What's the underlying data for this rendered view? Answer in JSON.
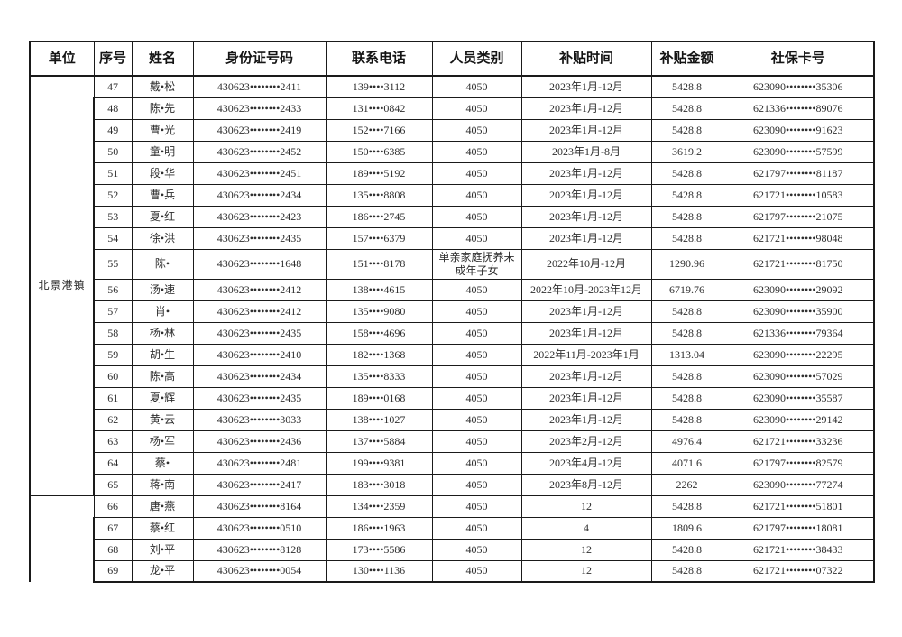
{
  "table": {
    "headers": [
      "单位",
      "序号",
      "姓名",
      "身份证号码",
      "联系电话",
      "人员类别",
      "补贴时间",
      "补贴金额",
      "社保卡号"
    ],
    "border_color": "#1a1a1a",
    "text_color": "#2e2e2e",
    "groups": [
      {
        "unit": "北景港镇",
        "rows": [
          [
            "47",
            "戴•松",
            "430623••••••••2411",
            "139••••3112",
            "4050",
            "2023年1月-12月",
            "5428.8",
            "623090••••••••35306"
          ],
          [
            "48",
            "陈•先",
            "430623••••••••2433",
            "131••••0842",
            "4050",
            "2023年1月-12月",
            "5428.8",
            "621336••••••••89076"
          ],
          [
            "49",
            "曹•光",
            "430623••••••••2419",
            "152••••7166",
            "4050",
            "2023年1月-12月",
            "5428.8",
            "623090••••••••91623"
          ],
          [
            "50",
            "童•明",
            "430623••••••••2452",
            "150••••6385",
            "4050",
            "2023年1月-8月",
            "3619.2",
            "623090••••••••57599"
          ],
          [
            "51",
            "段•华",
            "430623••••••••2451",
            "189••••5192",
            "4050",
            "2023年1月-12月",
            "5428.8",
            "621797••••••••81187"
          ],
          [
            "52",
            "曹•兵",
            "430623••••••••2434",
            "135••••8808",
            "4050",
            "2023年1月-12月",
            "5428.8",
            "621721••••••••10583"
          ],
          [
            "53",
            "夏•红",
            "430623••••••••2423",
            "186••••2745",
            "4050",
            "2023年1月-12月",
            "5428.8",
            "621797••••••••21075"
          ],
          [
            "54",
            "徐•洪",
            "430623••••••••2435",
            "157••••6379",
            "4050",
            "2023年1月-12月",
            "5428.8",
            "621721••••••••98048"
          ],
          [
            "55",
            "陈•",
            "430623••••••••1648",
            "151••••8178",
            "单亲家庭抚养未成年子女",
            "2022年10月-12月",
            "1290.96",
            "621721••••••••81750"
          ],
          [
            "56",
            "汤•速",
            "430623••••••••2412",
            "138••••4615",
            "4050",
            "2022年10月-2023年12月",
            "6719.76",
            "623090••••••••29092"
          ],
          [
            "57",
            "肖•",
            "430623••••••••2412",
            "135••••9080",
            "4050",
            "2023年1月-12月",
            "5428.8",
            "623090••••••••35900"
          ],
          [
            "58",
            "杨•林",
            "430623••••••••2435",
            "158••••4696",
            "4050",
            "2023年1月-12月",
            "5428.8",
            "621336••••••••79364"
          ],
          [
            "59",
            "胡•生",
            "430623••••••••2410",
            "182••••1368",
            "4050",
            "2022年11月-2023年1月",
            "1313.04",
            "623090••••••••22295"
          ],
          [
            "60",
            "陈•高",
            "430623••••••••2434",
            "135••••8333",
            "4050",
            "2023年1月-12月",
            "5428.8",
            "623090••••••••57029"
          ],
          [
            "61",
            "夏•辉",
            "430623••••••••2435",
            "189••••0168",
            "4050",
            "2023年1月-12月",
            "5428.8",
            "623090••••••••35587"
          ],
          [
            "62",
            "黄•云",
            "430623••••••••3033",
            "138••••1027",
            "4050",
            "2023年1月-12月",
            "5428.8",
            "623090••••••••29142"
          ],
          [
            "63",
            "杨•军",
            "430623••••••••2436",
            "137••••5884",
            "4050",
            "2023年2月-12月",
            "4976.4",
            "621721••••••••33236"
          ],
          [
            "64",
            "蔡•",
            "430623••••••••2481",
            "199••••9381",
            "4050",
            "2023年4月-12月",
            "4071.6",
            "621797••••••••82579"
          ],
          [
            "65",
            "蒋•南",
            "430623••••••••2417",
            "183••••3018",
            "4050",
            "2023年8月-12月",
            "2262",
            "623090••••••••77274"
          ]
        ]
      },
      {
        "unit": "",
        "rows": [
          [
            "66",
            "唐•燕",
            "430623••••••••8164",
            "134••••2359",
            "4050",
            "12",
            "5428.8",
            "621721••••••••51801"
          ],
          [
            "67",
            "蔡•红",
            "430623••••••••0510",
            "186••••1963",
            "4050",
            "4",
            "1809.6",
            "621797••••••••18081"
          ],
          [
            "68",
            "刘•平",
            "430623••••••••8128",
            "173••••5586",
            "4050",
            "12",
            "5428.8",
            "621721••••••••38433"
          ],
          [
            "69",
            "龙•平",
            "430623••••••••0054",
            "130••••1136",
            "4050",
            "12",
            "5428.8",
            "621721••••••••07322"
          ]
        ]
      }
    ]
  }
}
